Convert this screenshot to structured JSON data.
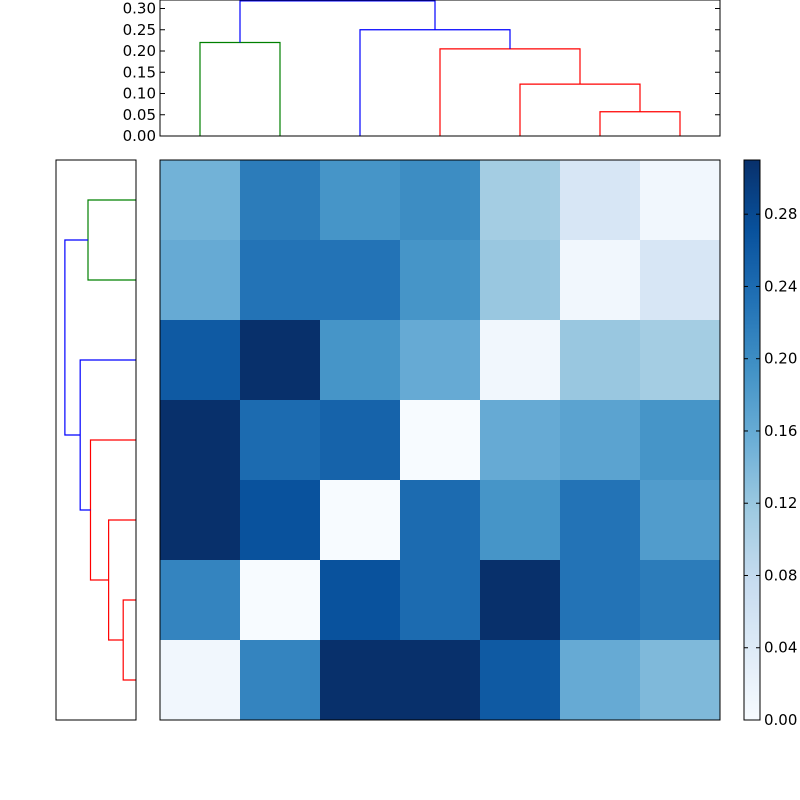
{
  "chart_data": [
    {
      "type": "dendrogram",
      "orientation": "top",
      "ylim": [
        0,
        0.32
      ],
      "yticks": [
        0.0,
        0.05,
        0.1,
        0.15,
        0.2,
        0.25,
        0.3
      ],
      "ytick_labels": [
        "0.00",
        "0.05",
        "0.10",
        "0.15",
        "0.20",
        "0.25",
        "0.30"
      ],
      "links": [
        {
          "x": [
            0.5,
            0.5,
            1.5,
            1.5
          ],
          "y": [
            0.0,
            0.22,
            0.22,
            0.0
          ],
          "color": "#008000"
        },
        {
          "x": [
            5.5,
            5.5,
            6.5,
            6.5
          ],
          "y": [
            0.0,
            0.057,
            0.057,
            0.0
          ],
          "color": "#ff0000"
        },
        {
          "x": [
            4.5,
            4.5,
            6.0,
            6.0
          ],
          "y": [
            0.0,
            0.122,
            0.122,
            0.057
          ],
          "color": "#ff0000"
        },
        {
          "x": [
            3.5,
            3.5,
            5.25,
            5.25
          ],
          "y": [
            0.0,
            0.205,
            0.205,
            0.122
          ],
          "color": "#ff0000"
        },
        {
          "x": [
            2.5,
            2.5,
            4.375,
            4.375
          ],
          "y": [
            0.0,
            0.25,
            0.25,
            0.205
          ],
          "color": "#0000ff"
        },
        {
          "x": [
            1.0,
            1.0,
            3.4375,
            3.4375
          ],
          "y": [
            0.22,
            0.318,
            0.318,
            0.25
          ],
          "color": "#0000ff"
        }
      ]
    },
    {
      "type": "dendrogram",
      "orientation": "left",
      "links": [
        {
          "y": [
            0.5,
            0.5,
            1.5,
            1.5
          ],
          "x": [
            0.0,
            0.135,
            0.135,
            0.0
          ],
          "color": "#008000"
        },
        {
          "y": [
            5.5,
            5.5,
            6.5,
            6.5
          ],
          "x": [
            0.0,
            0.036,
            0.036,
            0.0
          ],
          "color": "#ff0000"
        },
        {
          "y": [
            4.5,
            4.5,
            6.0,
            6.0
          ],
          "x": [
            0.0,
            0.077,
            0.077,
            0.036
          ],
          "color": "#ff0000"
        },
        {
          "y": [
            3.5,
            3.5,
            5.25,
            5.25
          ],
          "x": [
            0.0,
            0.128,
            0.128,
            0.077
          ],
          "color": "#ff0000"
        },
        {
          "y": [
            2.5,
            2.5,
            4.375,
            4.375
          ],
          "x": [
            0.0,
            0.157,
            0.157,
            0.128
          ],
          "color": "#0000ff"
        },
        {
          "y": [
            1.0,
            1.0,
            3.4375,
            3.4375
          ],
          "x": [
            0.135,
            0.2,
            0.2,
            0.157
          ],
          "color": "#0000ff"
        }
      ]
    },
    {
      "type": "heatmap",
      "colormap": "Blues",
      "vmin": 0.0,
      "vmax": 0.31,
      "values": [
        [
          0.15,
          0.22,
          0.19,
          0.2,
          0.11,
          0.05,
          0.01
        ],
        [
          0.16,
          0.23,
          0.23,
          0.19,
          0.12,
          0.01,
          0.05
        ],
        [
          0.26,
          0.31,
          0.19,
          0.16,
          0.01,
          0.12,
          0.11
        ],
        [
          0.31,
          0.24,
          0.25,
          0.0,
          0.16,
          0.17,
          0.19
        ],
        [
          0.31,
          0.27,
          0.0,
          0.24,
          0.19,
          0.23,
          0.18
        ],
        [
          0.21,
          0.0,
          0.27,
          0.24,
          0.31,
          0.23,
          0.22
        ],
        [
          0.01,
          0.21,
          0.31,
          0.31,
          0.26,
          0.16,
          0.14
        ]
      ]
    },
    {
      "type": "colorbar",
      "ticks": [
        0.0,
        0.04,
        0.08,
        0.12,
        0.16,
        0.2,
        0.24,
        0.28
      ],
      "tick_labels": [
        "0.00",
        "0.04",
        "0.08",
        "0.12",
        "0.16",
        "0.20",
        "0.24",
        "0.28"
      ],
      "range": [
        0.0,
        0.31
      ]
    }
  ]
}
